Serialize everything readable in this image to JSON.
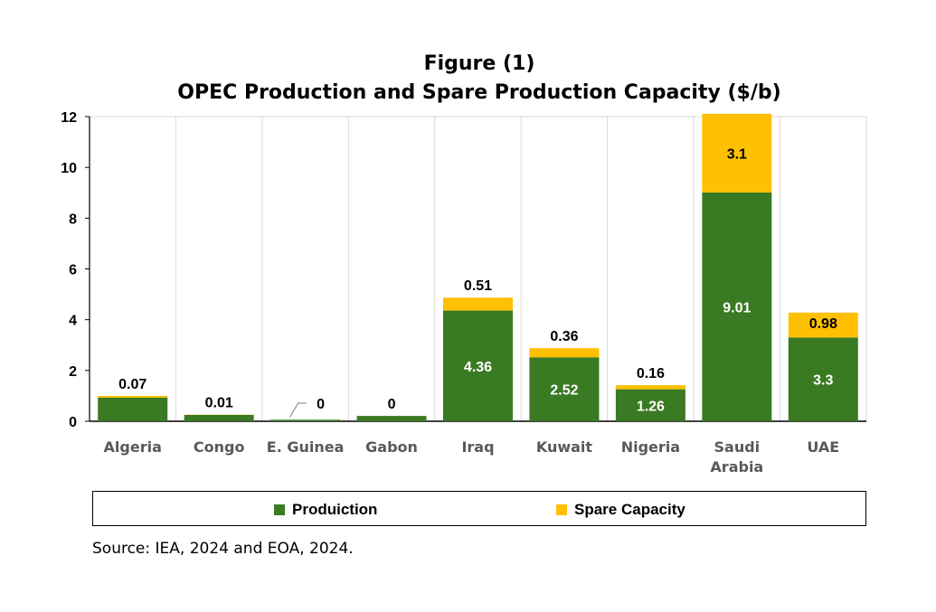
{
  "title_line1": "Figure (1)",
  "title_line2": "OPEC Production and Spare Production Capacity ($/b)",
  "source": "Source: IEA, 2024 and EOA, 2024.",
  "colors": {
    "production": "#3a7a22",
    "spare": "#fec000",
    "grid": "#d9d9d9"
  },
  "chart_data": {
    "type": "bar",
    "stacked": true,
    "categories": [
      "Algeria",
      "Congo",
      "E. Guinea",
      "Gabon",
      "Iraq",
      "Kuwait",
      "Nigeria",
      "Saudi Arabia",
      "UAE"
    ],
    "category_labels": [
      [
        "Algeria"
      ],
      [
        "Congo"
      ],
      [
        "E. Guinea"
      ],
      [
        "Gabon"
      ],
      [
        "Iraq"
      ],
      [
        "Kuwait"
      ],
      [
        "Nigeria"
      ],
      [
        "Saudi",
        "Arabia"
      ],
      [
        "UAE"
      ]
    ],
    "series": [
      {
        "name": "Produiction",
        "values": [
          0.93,
          0.25,
          0.06,
          0.21,
          4.36,
          2.52,
          1.26,
          9.01,
          3.3
        ],
        "labels": [
          "",
          "",
          "",
          "",
          "4.36",
          "2.52",
          "1.26",
          "9.01",
          "3.3"
        ]
      },
      {
        "name": "Spare Capacity",
        "values": [
          0.07,
          0.01,
          0,
          0,
          0.51,
          0.36,
          0.16,
          3.1,
          0.98
        ],
        "labels": [
          "0.07",
          "0.01",
          "0",
          "0",
          "0.51",
          "0.36",
          "0.16",
          "3.1",
          "0.98"
        ]
      }
    ],
    "ylim": [
      0,
      12
    ],
    "yticks": [
      0,
      2,
      4,
      6,
      8,
      10,
      12
    ],
    "grid": true,
    "legend_position": "bottom"
  }
}
